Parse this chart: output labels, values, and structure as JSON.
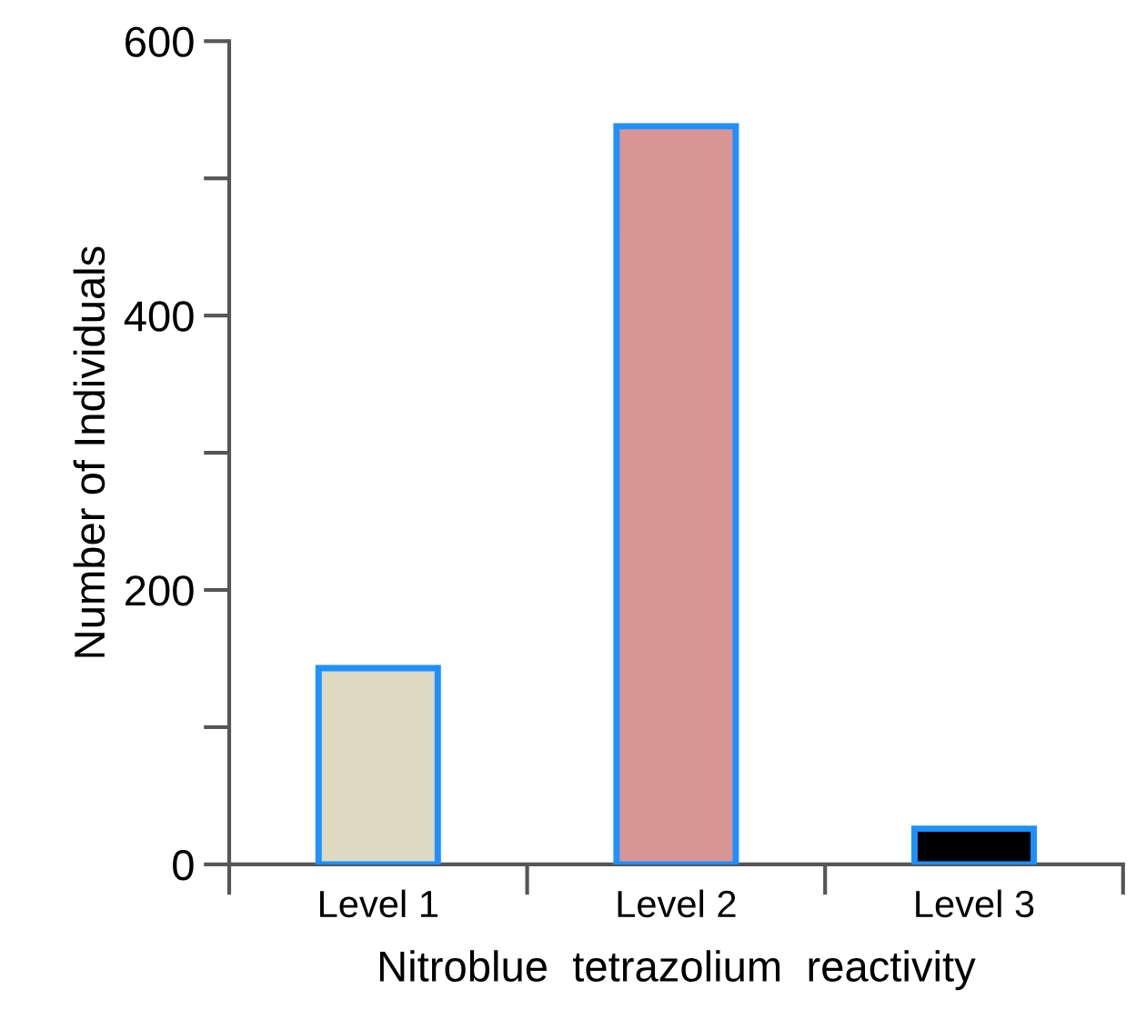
{
  "chart_data": {
    "type": "bar",
    "xlabel": "Nitroblue  tetrazolium  reactivity",
    "ylabel": "Number of Individuals",
    "categories": [
      "Level 1",
      "Level 2",
      "Level 3"
    ],
    "values": [
      143,
      538,
      26
    ],
    "colors": [
      "#ddd9c3",
      "#d99594",
      "#000000"
    ],
    "ylim": [
      0,
      600
    ],
    "yticks": [
      0,
      {
        "value": 100,
        "label": null
      },
      200,
      {
        "value": 300,
        "label": null
      },
      400,
      {
        "value": 500,
        "label": null
      },
      600
    ],
    "grid": false
  }
}
